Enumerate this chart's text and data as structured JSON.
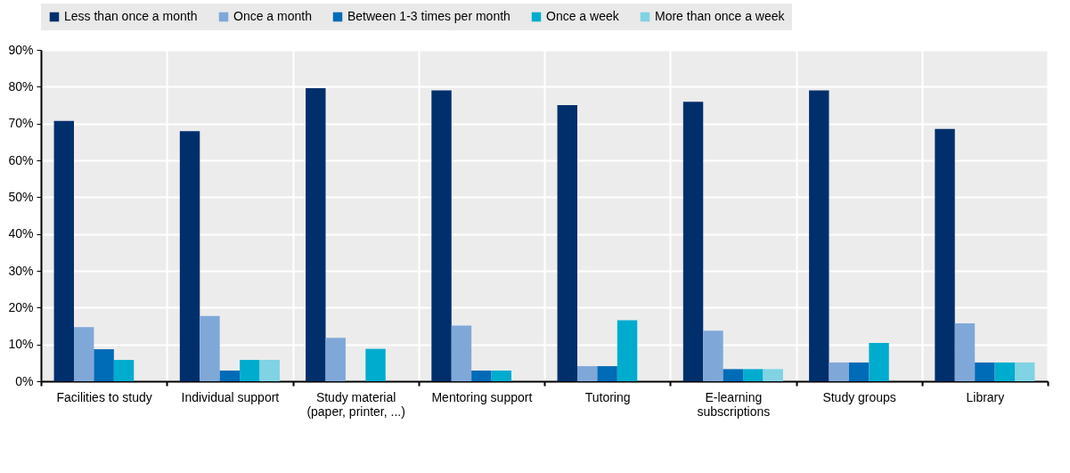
{
  "chart_data": {
    "type": "bar",
    "categories": [
      "Facilities to study",
      "Individual support",
      "Study material (paper, printer, ...)",
      "Mentoring support",
      "Tutoring",
      "E-learning subscriptions",
      "Study groups",
      "Library"
    ],
    "series": [
      {
        "name": "Less than once a month",
        "color": "#002f6c",
        "values": [
          70.7,
          67.9,
          79.6,
          79.0,
          75.0,
          75.9,
          79.0,
          68.5
        ]
      },
      {
        "name": "Once a month",
        "color": "#7fa8d9",
        "values": [
          14.7,
          17.7,
          11.8,
          15.1,
          4.1,
          13.7,
          5.1,
          15.7
        ]
      },
      {
        "name": "Between 1-3 times per month",
        "color": "#006bb6",
        "values": [
          8.7,
          2.9,
          null,
          2.9,
          4.1,
          3.3,
          5.1,
          5.1
        ]
      },
      {
        "name": "Once a week",
        "color": "#00acce",
        "values": [
          5.8,
          5.8,
          8.8,
          2.9,
          16.6,
          3.3,
          10.4,
          5.1
        ]
      },
      {
        "name": "More than once a week",
        "color": "#7fd3e3",
        "values": [
          null,
          5.8,
          null,
          null,
          null,
          3.3,
          null,
          5.1
        ]
      }
    ],
    "ylim": [
      0,
      90
    ],
    "yticks": [
      {
        "value": 0,
        "label": "0%"
      },
      {
        "value": 10,
        "label": "10%"
      },
      {
        "value": 20,
        "label": "20%"
      },
      {
        "value": 30,
        "label": "30%"
      },
      {
        "value": 40,
        "label": "40%"
      },
      {
        "value": 50,
        "label": "50%"
      },
      {
        "value": 60,
        "label": "60%"
      },
      {
        "value": 70,
        "label": "70%"
      },
      {
        "value": 80,
        "label": "80%"
      },
      {
        "value": 90,
        "label": "90%"
      }
    ],
    "grid": true,
    "legend": "top"
  }
}
